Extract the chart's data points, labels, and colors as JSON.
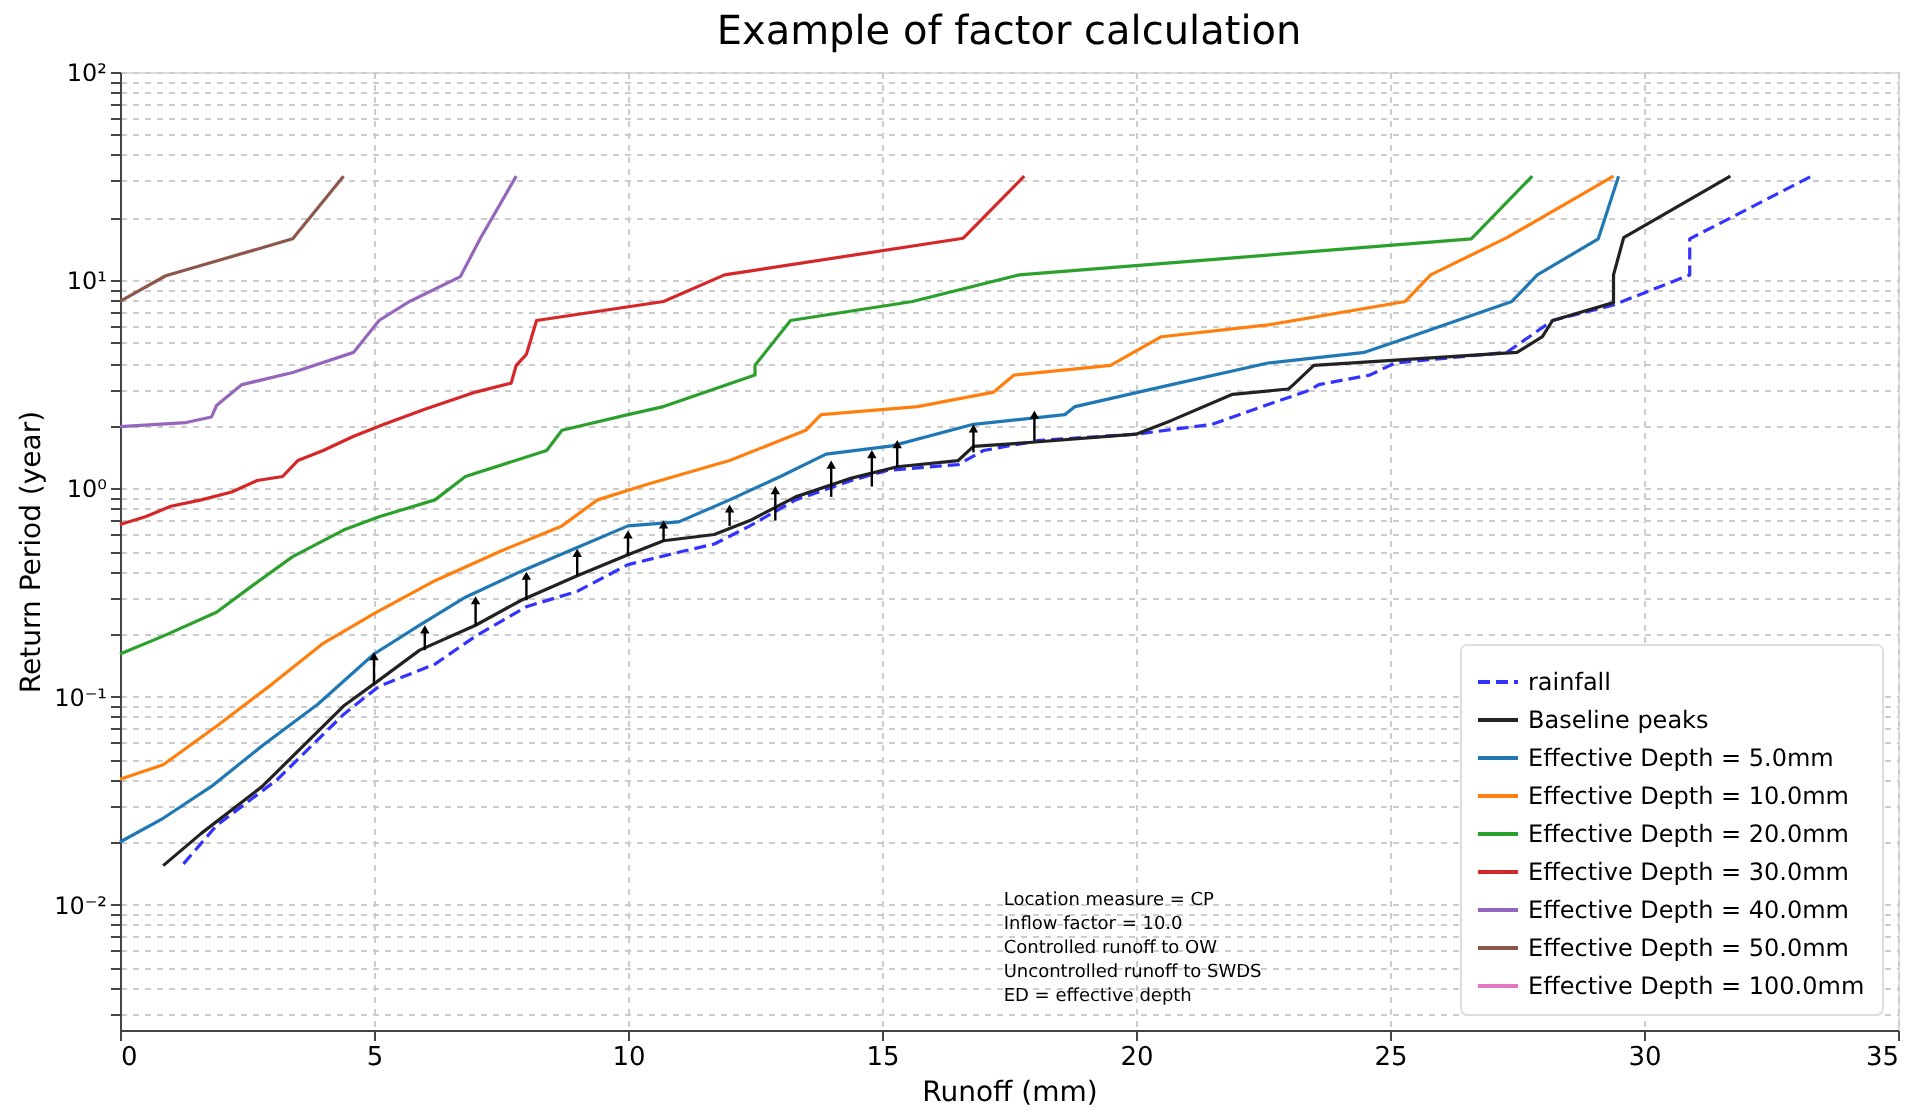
{
  "chart_data": {
    "type": "line",
    "title": "Example of factor calculation",
    "xlabel": "Runoff (mm)",
    "ylabel": "Return Period (year)",
    "xlim": [
      0,
      35
    ],
    "xticks": [
      0,
      5,
      10,
      15,
      20,
      25,
      30,
      35
    ],
    "ylim": [
      0.0025,
      100
    ],
    "log": "y",
    "yticks": [
      {
        "value": 0.003,
        "label": null
      },
      {
        "value": 0.004,
        "label": null
      },
      {
        "value": 0.005,
        "label": null
      },
      {
        "value": 0.006,
        "label": null
      },
      {
        "value": 0.007,
        "label": null
      },
      {
        "value": 0.008,
        "label": null
      },
      {
        "value": 0.009,
        "label": null
      },
      {
        "value": 0.01,
        "label": "10⁻²"
      },
      {
        "value": 0.02,
        "label": null
      },
      {
        "value": 0.03,
        "label": null
      },
      {
        "value": 0.04,
        "label": null
      },
      {
        "value": 0.05,
        "label": null
      },
      {
        "value": 0.06,
        "label": null
      },
      {
        "value": 0.07,
        "label": null
      },
      {
        "value": 0.08,
        "label": null
      },
      {
        "value": 0.09,
        "label": null
      },
      {
        "value": 0.1,
        "label": "10⁻¹"
      },
      {
        "value": 0.2,
        "label": null
      },
      {
        "value": 0.3,
        "label": null
      },
      {
        "value": 0.4,
        "label": null
      },
      {
        "value": 0.5,
        "label": null
      },
      {
        "value": 0.6,
        "label": null
      },
      {
        "value": 0.7,
        "label": null
      },
      {
        "value": 0.8,
        "label": null
      },
      {
        "value": 0.9,
        "label": null
      },
      {
        "value": 1,
        "label": "10⁰"
      },
      {
        "value": 2,
        "label": null
      },
      {
        "value": 3,
        "label": null
      },
      {
        "value": 4,
        "label": null
      },
      {
        "value": 5,
        "label": null
      },
      {
        "value": 6,
        "label": null
      },
      {
        "value": 7,
        "label": null
      },
      {
        "value": 8,
        "label": null
      },
      {
        "value": 9,
        "label": null
      },
      {
        "value": 10,
        "label": "10¹"
      },
      {
        "value": 20,
        "label": null
      },
      {
        "value": 30,
        "label": null
      },
      {
        "value": 40,
        "label": null
      },
      {
        "value": 50,
        "label": null
      },
      {
        "value": 60,
        "label": null
      },
      {
        "value": 70,
        "label": null
      },
      {
        "value": 80,
        "label": null
      },
      {
        "value": 90,
        "label": null
      },
      {
        "value": 100,
        "label": "10²"
      }
    ],
    "grid": true,
    "legend": "bottom right",
    "marker": "none",
    "line_style": "solid",
    "annotations": [
      "Location measure =  CP",
      "Inflow factor =  10.0",
      "Controlled runoff to OW",
      "Uncontrolled runoff to SWDS",
      "ED = effective depth"
    ],
    "series": [
      {
        "name": "rainfall",
        "color": "#3333ff",
        "line_style": "dashed",
        "x": [
          1.25,
          1.9,
          3.1,
          4.4,
          5.1,
          6.2,
          7,
          8,
          9,
          10,
          11.1,
          11.7,
          12.4,
          13.3,
          14.4,
          15.1,
          16.5,
          17,
          18.1,
          20,
          21.5,
          22.6,
          23.4,
          23.6,
          24.6,
          25.1,
          27.3,
          28.2,
          29.4,
          30.9,
          30.9,
          33.3
        ],
        "values": [
          0.0157,
          0.024,
          0.04,
          0.082,
          0.112,
          0.143,
          0.195,
          0.27,
          0.32,
          0.43,
          0.5,
          0.54,
          0.66,
          0.88,
          1.09,
          1.22,
          1.3,
          1.52,
          1.7,
          1.82,
          2.03,
          2.53,
          2.95,
          3.15,
          3.5,
          4.0,
          4.5,
          6.4,
          7.6,
          10.6,
          15.8,
          31.6
        ]
      },
      {
        "name": "Baseline peaks",
        "color": "#222222",
        "x": [
          0.85,
          1.6,
          2.8,
          4.4,
          5,
          5.9,
          7,
          7.9,
          9,
          10,
          10.7,
          11.7,
          12.4,
          13.3,
          14.4,
          15.3,
          16.5,
          16.8,
          17.9,
          20,
          20.7,
          21.9,
          23,
          23.1,
          23.5,
          27.5,
          28,
          28.2,
          29.4,
          29.4,
          29.6,
          31.7
        ],
        "values": [
          0.0154,
          0.022,
          0.037,
          0.09,
          0.115,
          0.167,
          0.22,
          0.29,
          0.38,
          0.48,
          0.56,
          0.6,
          0.7,
          0.91,
          1.12,
          1.27,
          1.36,
          1.59,
          1.66,
          1.82,
          2.12,
          2.83,
          3.0,
          3.15,
          3.9,
          4.5,
          5.35,
          6.4,
          7.8,
          10.6,
          16,
          31.6
        ]
      },
      {
        "name": "Effective Depth = 5.0mm",
        "color": "#1f77b4",
        "x": [
          0,
          0.85,
          1.8,
          2.8,
          3.9,
          5,
          5.9,
          6.8,
          7.9,
          9,
          10,
          11,
          12,
          13,
          13.9,
          15.2,
          16.8,
          18.6,
          18.8,
          20.7,
          22.6,
          24.5,
          25.4,
          27.4,
          27.9,
          29.1,
          29.5
        ],
        "values": [
          0.02,
          0.026,
          0.037,
          0.058,
          0.092,
          0.16,
          0.22,
          0.3,
          0.4,
          0.52,
          0.66,
          0.69,
          0.88,
          1.14,
          1.46,
          1.6,
          2.03,
          2.26,
          2.47,
          3.15,
          4.0,
          4.5,
          5.35,
          7.9,
          10.6,
          15.8,
          31.6
        ]
      },
      {
        "name": "Effective Depth = 10.0mm",
        "color": "#ff7f0e",
        "x": [
          0,
          0.85,
          1.9,
          3,
          4,
          5,
          6.2,
          7.5,
          8.7,
          9.4,
          10.4,
          12,
          13.5,
          13.8,
          15.7,
          17.2,
          17.6,
          19.5,
          20.5,
          22.6,
          25.3,
          25.8,
          27.3,
          29.4
        ],
        "values": [
          0.04,
          0.047,
          0.072,
          0.115,
          0.18,
          0.25,
          0.36,
          0.5,
          0.66,
          0.88,
          1.05,
          1.36,
          1.9,
          2.26,
          2.47,
          2.9,
          3.5,
          3.9,
          5.35,
          6.1,
          7.9,
          10.6,
          16,
          31.6
        ]
      },
      {
        "name": "Effective Depth = 20.0mm",
        "color": "#2ca02c",
        "x": [
          0,
          0.85,
          1.9,
          2.6,
          3.4,
          4.4,
          5.1,
          6.2,
          6.8,
          8.4,
          8.7,
          10,
          10.7,
          12.5,
          12.5,
          13.2,
          15.6,
          17.7,
          22.6,
          26.6,
          27.8
        ],
        "values": [
          0.16,
          0.195,
          0.254,
          0.34,
          0.47,
          0.63,
          0.73,
          0.88,
          1.14,
          1.52,
          1.9,
          2.26,
          2.47,
          3.5,
          3.9,
          6.4,
          7.9,
          10.6,
          13.2,
          15.8,
          31.6
        ]
      },
      {
        "name": "Effective Depth = 30.0mm",
        "color": "#d62728",
        "x": [
          0,
          0.5,
          1,
          1.6,
          2.2,
          2.7,
          3.2,
          3.5,
          4,
          4.6,
          5.2,
          6,
          7,
          7.7,
          7.8,
          8.0,
          8.2,
          10.7,
          11.9,
          16.6,
          17.8
        ],
        "values": [
          0.67,
          0.73,
          0.82,
          0.88,
          0.96,
          1.09,
          1.14,
          1.36,
          1.52,
          1.78,
          2.03,
          2.4,
          2.9,
          3.2,
          3.9,
          4.4,
          6.4,
          7.9,
          10.6,
          15.9,
          31.6
        ]
      },
      {
        "name": "Effective Depth = 40.0mm",
        "color": "#9467bd",
        "x": [
          0,
          1.3,
          1.8,
          1.9,
          2.4,
          3.4,
          4.6,
          5.1,
          5.7,
          6.7,
          7.1,
          7.8
        ],
        "values": [
          1.98,
          2.07,
          2.2,
          2.5,
          3.15,
          3.6,
          4.5,
          6.4,
          7.9,
          10.4,
          16,
          31.6
        ]
      },
      {
        "name": "Effective Depth = 50.0mm",
        "color": "#8c564b",
        "x": [
          0,
          0.9,
          3.4,
          4.4
        ],
        "values": [
          7.9,
          10.5,
          15.8,
          31.6
        ]
      },
      {
        "name": "Effective Depth = 100.0mm",
        "color": "#e377c2"
      },
      {
        "color": "#000000",
        "marker": "triangle",
        "x": [
          5,
          5
        ],
        "values": [
          0.115,
          0.156
        ]
      },
      {
        "color": "#000000",
        "marker": "triangle",
        "x": [
          6,
          6
        ],
        "values": [
          0.167,
          0.21
        ]
      },
      {
        "color": "#000000",
        "marker": "triangle",
        "x": [
          7,
          7
        ],
        "values": [
          0.22,
          0.29
        ]
      },
      {
        "color": "#000000",
        "marker": "triangle",
        "x": [
          8,
          8
        ],
        "values": [
          0.29,
          0.38
        ]
      },
      {
        "color": "#000000",
        "marker": "triangle",
        "x": [
          9,
          9
        ],
        "values": [
          0.38,
          0.49
        ]
      },
      {
        "color": "#000000",
        "marker": "triangle",
        "x": [
          10,
          10
        ],
        "values": [
          0.48,
          0.6
        ]
      },
      {
        "color": "#000000",
        "marker": "triangle",
        "x": [
          10.7,
          10.7
        ],
        "values": [
          0.56,
          0.67
        ]
      },
      {
        "color": "#000000",
        "marker": "triangle",
        "x": [
          12,
          12
        ],
        "values": [
          0.66,
          0.8
        ]
      },
      {
        "color": "#000000",
        "marker": "triangle",
        "x": [
          12.9,
          12.9
        ],
        "values": [
          0.7,
          0.98
        ]
      },
      {
        "color": "#000000",
        "marker": "triangle",
        "x": [
          14,
          14
        ],
        "values": [
          0.91,
          1.3
        ]
      },
      {
        "color": "#000000",
        "marker": "triangle",
        "x": [
          14.8,
          14.8
        ],
        "values": [
          1.02,
          1.46
        ]
      },
      {
        "color": "#000000",
        "marker": "triangle",
        "x": [
          15.3,
          15.3
        ],
        "values": [
          1.27,
          1.63
        ]
      },
      {
        "color": "#000000",
        "marker": "triangle",
        "x": [
          16.8,
          16.8
        ],
        "values": [
          1.49,
          1.94
        ]
      },
      {
        "color": "#000000",
        "marker": "triangle",
        "x": [
          18,
          18
        ],
        "values": [
          1.7,
          2.26
        ]
      }
    ]
  }
}
